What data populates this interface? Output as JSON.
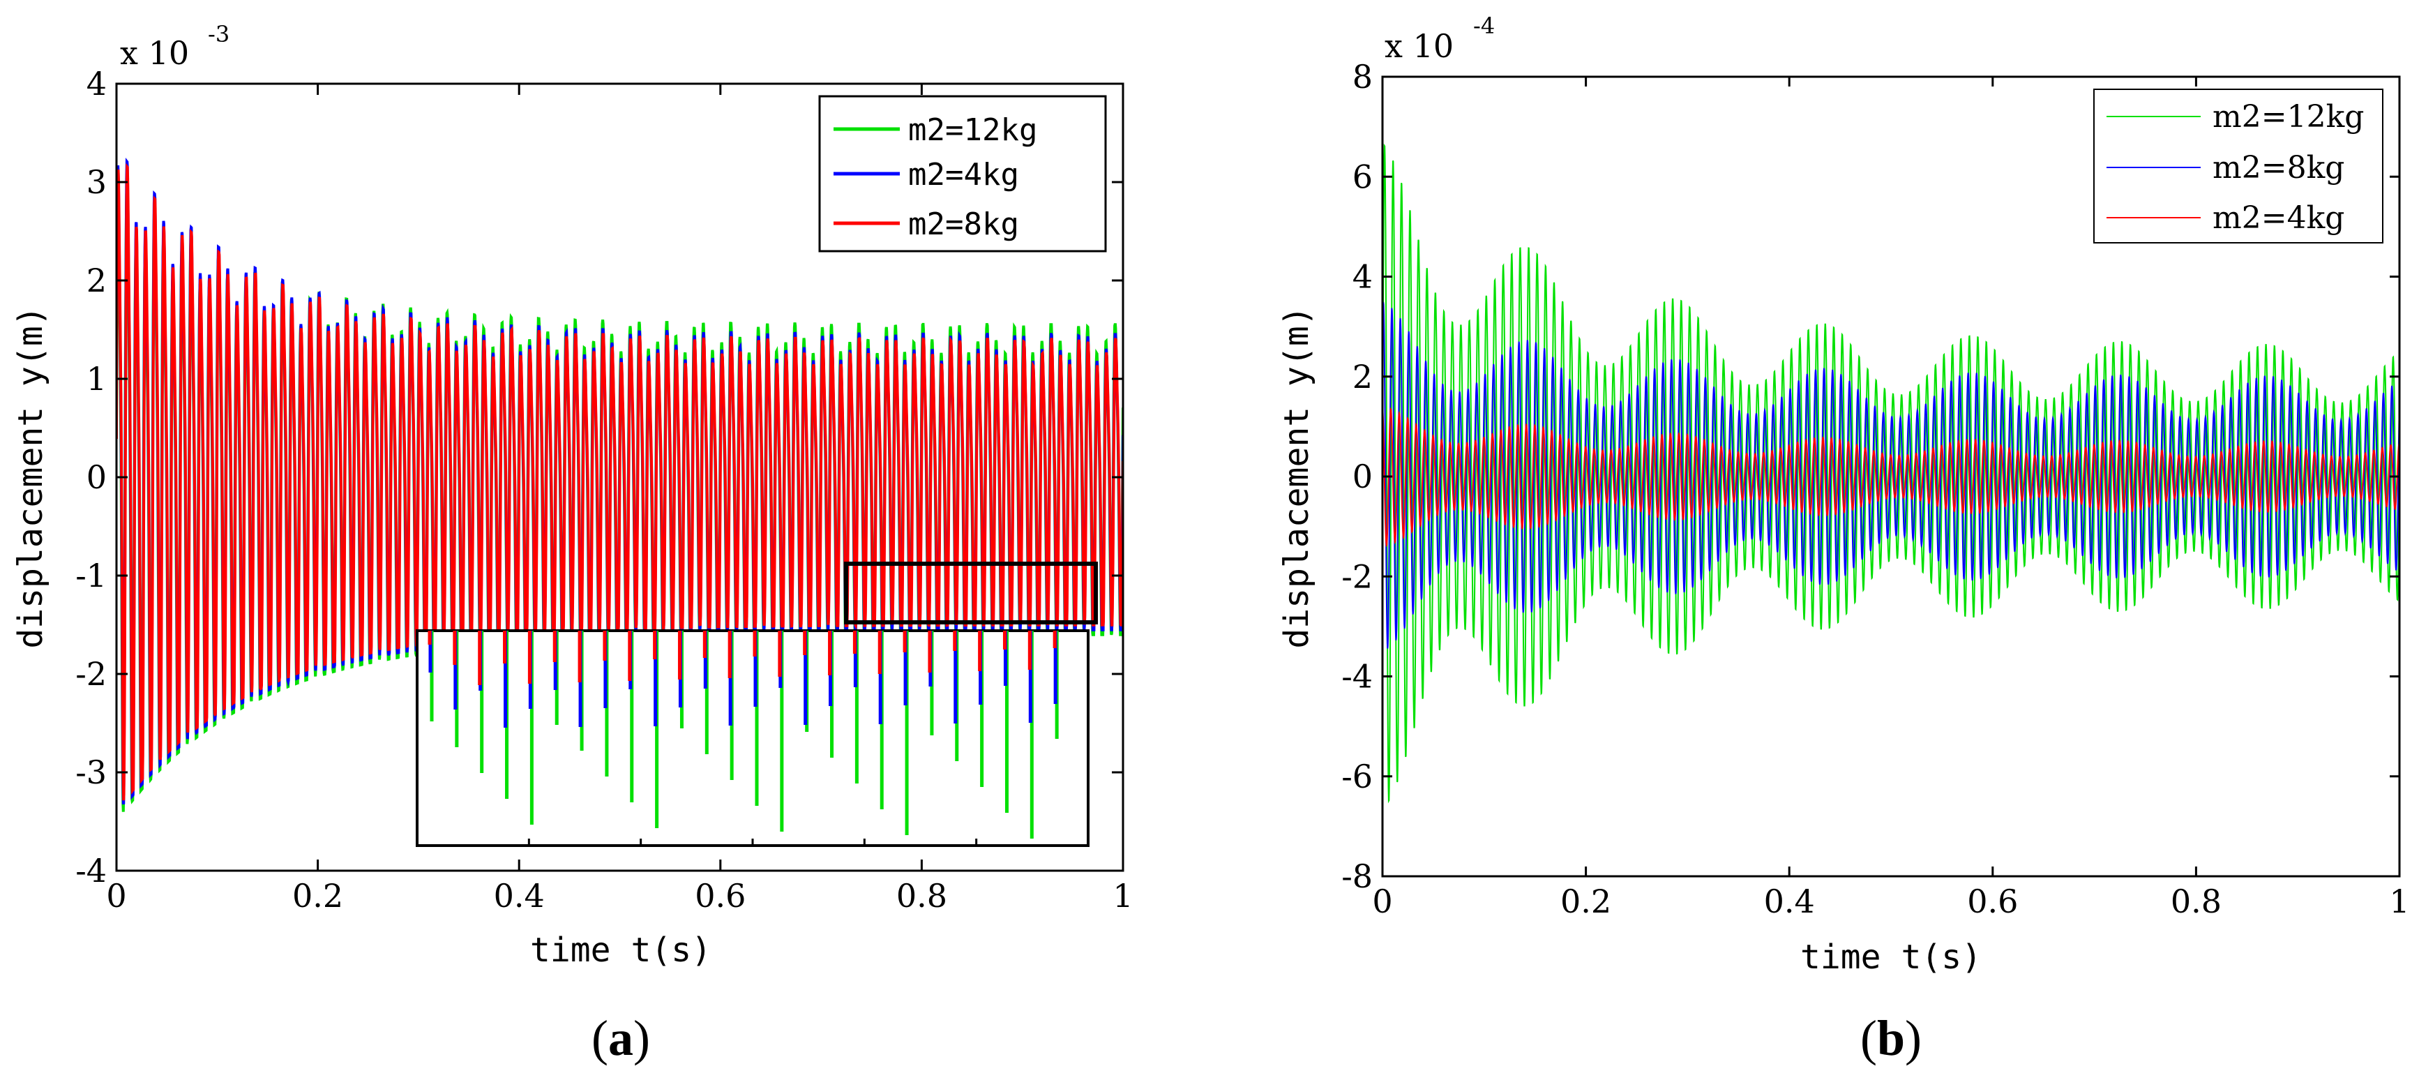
{
  "chart_data": [
    {
      "type": "line",
      "panel": "(a)",
      "panel_letter": "a",
      "xlabel": "time t(s)",
      "ylabel": "displacement y(m)",
      "xlim": [
        0,
        1
      ],
      "ylim": [
        -4,
        4
      ],
      "y_scale_prefix": "x 10",
      "y_scale_exponent": "-3",
      "x_ticks": [
        0,
        0.2,
        0.4,
        0.6,
        0.8,
        1
      ],
      "x_tick_labels": [
        "0",
        "0.2",
        "0.4",
        "0.6",
        "0.8",
        "1"
      ],
      "y_ticks": [
        -4,
        -3,
        -2,
        -1,
        0,
        1,
        2,
        3,
        4
      ],
      "y_tick_labels": [
        "-4",
        "-3",
        "-2",
        "-1",
        "0",
        "1",
        "2",
        "3",
        "4"
      ],
      "legend_position": "top-right",
      "inset": "zoomed view of window t 0.73-0.97 s, y -1.5 to -0.9 (x10^-3)",
      "series": [
        {
          "name": "m2=12kg",
          "color": "#00e000",
          "peak_initial": 3.0,
          "peak_final": 1.55,
          "trough_initial": -3.5,
          "trough_final": -1.6,
          "oscillations": 110
        },
        {
          "name": "m2=4kg",
          "color": "#0000ff",
          "peak_initial": 3.35,
          "peak_final": 1.45,
          "trough_initial": -3.45,
          "trough_final": -1.55,
          "oscillations": 110
        },
        {
          "name": "m2=8kg",
          "color": "#ff0000",
          "peak_initial": 3.3,
          "peak_final": 1.4,
          "trough_initial": -3.4,
          "trough_final": -1.5,
          "oscillations": 110
        }
      ]
    },
    {
      "type": "line",
      "panel": "(b)",
      "panel_letter": "b",
      "xlabel": "time t(s)",
      "ylabel": "displacement y(m)",
      "xlim": [
        0,
        1
      ],
      "ylim": [
        -8,
        8
      ],
      "y_scale_prefix": "x 10",
      "y_scale_exponent": "-4",
      "x_ticks": [
        0,
        0.2,
        0.4,
        0.6,
        0.8,
        1
      ],
      "x_tick_labels": [
        "0",
        "0.2",
        "0.4",
        "0.6",
        "0.8",
        "1"
      ],
      "y_ticks": [
        -8,
        -6,
        -4,
        -2,
        0,
        2,
        4,
        6,
        8
      ],
      "y_tick_labels": [
        "-8",
        "-6",
        "-4",
        "-2",
        "0",
        "2",
        "4",
        "6",
        "8"
      ],
      "legend_position": "top-right",
      "series": [
        {
          "name": "m2=12kg",
          "color": "#00e000",
          "peak_max": 6.3,
          "trough_min": -6.7,
          "final_amplitude": 2.6,
          "oscillations": 120
        },
        {
          "name": "m2=8kg",
          "color": "#0000ff",
          "peak_max": 3.3,
          "trough_min": -3.5,
          "final_amplitude": 2.0,
          "oscillations": 120
        },
        {
          "name": "m2=4kg",
          "color": "#ff0000",
          "peak_max": 1.4,
          "trough_min": -1.3,
          "final_amplitude": 0.7,
          "oscillations": 120
        }
      ]
    }
  ]
}
